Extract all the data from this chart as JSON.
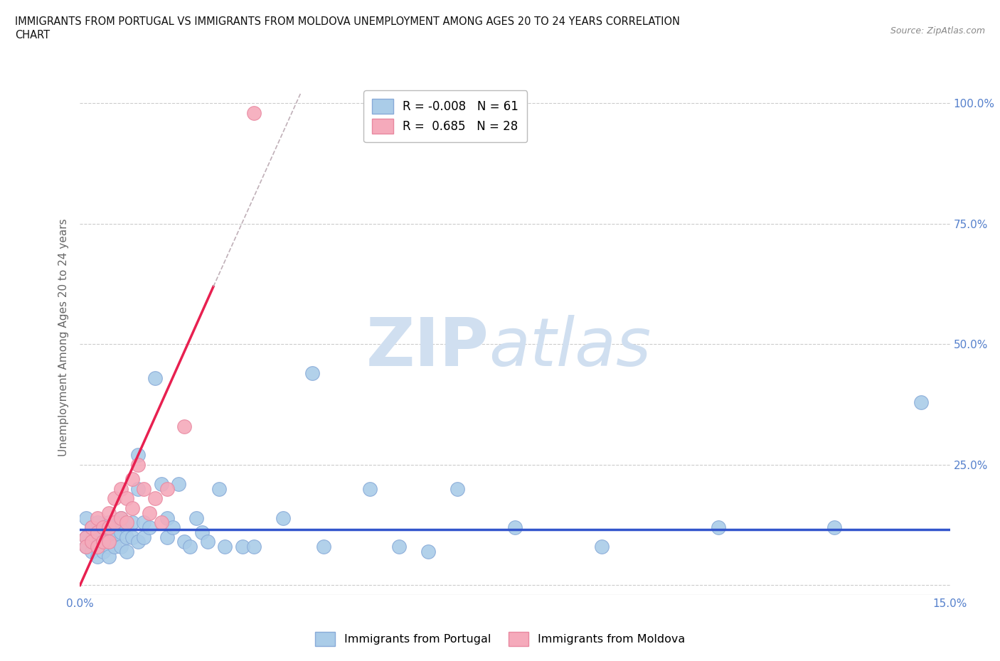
{
  "title_line1": "IMMIGRANTS FROM PORTUGAL VS IMMIGRANTS FROM MOLDOVA UNEMPLOYMENT AMONG AGES 20 TO 24 YEARS CORRELATION",
  "title_line2": "CHART",
  "source": "Source: ZipAtlas.com",
  "ylabel": "Unemployment Among Ages 20 to 24 years",
  "xlim": [
    0.0,
    0.15
  ],
  "ylim": [
    -0.02,
    1.05
  ],
  "xticks": [
    0.0,
    0.03,
    0.06,
    0.09,
    0.12,
    0.15
  ],
  "xticklabels": [
    "0.0%",
    "",
    "",
    "",
    "",
    "15.0%"
  ],
  "yticks": [
    0.0,
    0.25,
    0.5,
    0.75,
    1.0
  ],
  "yticklabels": [
    "",
    "25.0%",
    "50.0%",
    "75.0%",
    "100.0%"
  ],
  "portugal_color": "#aacce8",
  "moldova_color": "#f5aabb",
  "portugal_edge": "#88aad8",
  "moldova_edge": "#e888a0",
  "trend_portugal_color": "#3355cc",
  "trend_moldova_color": "#e82050",
  "trend_moldova_dashed_color": "#c0b0b8",
  "R_portugal": -0.008,
  "N_portugal": 61,
  "R_moldova": 0.685,
  "N_moldova": 28,
  "watermark_color": "#d0dff0",
  "background_color": "white",
  "grid_color": "#cccccc",
  "portugal_scatter": [
    [
      0.001,
      0.14
    ],
    [
      0.001,
      0.1
    ],
    [
      0.001,
      0.08
    ],
    [
      0.002,
      0.12
    ],
    [
      0.002,
      0.09
    ],
    [
      0.002,
      0.07
    ],
    [
      0.003,
      0.13
    ],
    [
      0.003,
      0.1
    ],
    [
      0.003,
      0.08
    ],
    [
      0.003,
      0.06
    ],
    [
      0.004,
      0.11
    ],
    [
      0.004,
      0.09
    ],
    [
      0.004,
      0.07
    ],
    [
      0.005,
      0.13
    ],
    [
      0.005,
      0.1
    ],
    [
      0.005,
      0.08
    ],
    [
      0.005,
      0.06
    ],
    [
      0.006,
      0.12
    ],
    [
      0.006,
      0.1
    ],
    [
      0.006,
      0.08
    ],
    [
      0.007,
      0.14
    ],
    [
      0.007,
      0.11
    ],
    [
      0.007,
      0.08
    ],
    [
      0.008,
      0.12
    ],
    [
      0.008,
      0.1
    ],
    [
      0.008,
      0.07
    ],
    [
      0.009,
      0.13
    ],
    [
      0.009,
      0.1
    ],
    [
      0.01,
      0.27
    ],
    [
      0.01,
      0.2
    ],
    [
      0.01,
      0.09
    ],
    [
      0.011,
      0.13
    ],
    [
      0.011,
      0.1
    ],
    [
      0.012,
      0.12
    ],
    [
      0.013,
      0.43
    ],
    [
      0.014,
      0.21
    ],
    [
      0.015,
      0.14
    ],
    [
      0.015,
      0.1
    ],
    [
      0.016,
      0.12
    ],
    [
      0.017,
      0.21
    ],
    [
      0.018,
      0.09
    ],
    [
      0.019,
      0.08
    ],
    [
      0.02,
      0.14
    ],
    [
      0.021,
      0.11
    ],
    [
      0.022,
      0.09
    ],
    [
      0.024,
      0.2
    ],
    [
      0.025,
      0.08
    ],
    [
      0.028,
      0.08
    ],
    [
      0.03,
      0.08
    ],
    [
      0.035,
      0.14
    ],
    [
      0.04,
      0.44
    ],
    [
      0.042,
      0.08
    ],
    [
      0.05,
      0.2
    ],
    [
      0.055,
      0.08
    ],
    [
      0.06,
      0.07
    ],
    [
      0.065,
      0.2
    ],
    [
      0.075,
      0.12
    ],
    [
      0.09,
      0.08
    ],
    [
      0.11,
      0.12
    ],
    [
      0.13,
      0.12
    ],
    [
      0.145,
      0.38
    ]
  ],
  "moldova_scatter": [
    [
      0.001,
      0.1
    ],
    [
      0.001,
      0.08
    ],
    [
      0.002,
      0.12
    ],
    [
      0.002,
      0.09
    ],
    [
      0.003,
      0.14
    ],
    [
      0.003,
      0.11
    ],
    [
      0.003,
      0.08
    ],
    [
      0.004,
      0.12
    ],
    [
      0.004,
      0.09
    ],
    [
      0.005,
      0.15
    ],
    [
      0.005,
      0.12
    ],
    [
      0.005,
      0.09
    ],
    [
      0.006,
      0.18
    ],
    [
      0.006,
      0.13
    ],
    [
      0.007,
      0.2
    ],
    [
      0.007,
      0.14
    ],
    [
      0.008,
      0.18
    ],
    [
      0.008,
      0.13
    ],
    [
      0.009,
      0.22
    ],
    [
      0.009,
      0.16
    ],
    [
      0.01,
      0.25
    ],
    [
      0.011,
      0.2
    ],
    [
      0.012,
      0.15
    ],
    [
      0.013,
      0.18
    ],
    [
      0.014,
      0.13
    ],
    [
      0.015,
      0.2
    ],
    [
      0.018,
      0.33
    ],
    [
      0.03,
      0.98
    ]
  ],
  "trend_portugal_y": 0.115,
  "trend_moldova_solid_x0": 0.0,
  "trend_moldova_solid_y0": 0.0,
  "trend_moldova_solid_x1": 0.023,
  "trend_moldova_solid_y1": 0.62,
  "trend_moldova_dashed_x0": 0.023,
  "trend_moldova_dashed_y0": 0.62,
  "trend_moldova_dashed_x1": 0.038,
  "trend_moldova_dashed_y1": 1.02
}
